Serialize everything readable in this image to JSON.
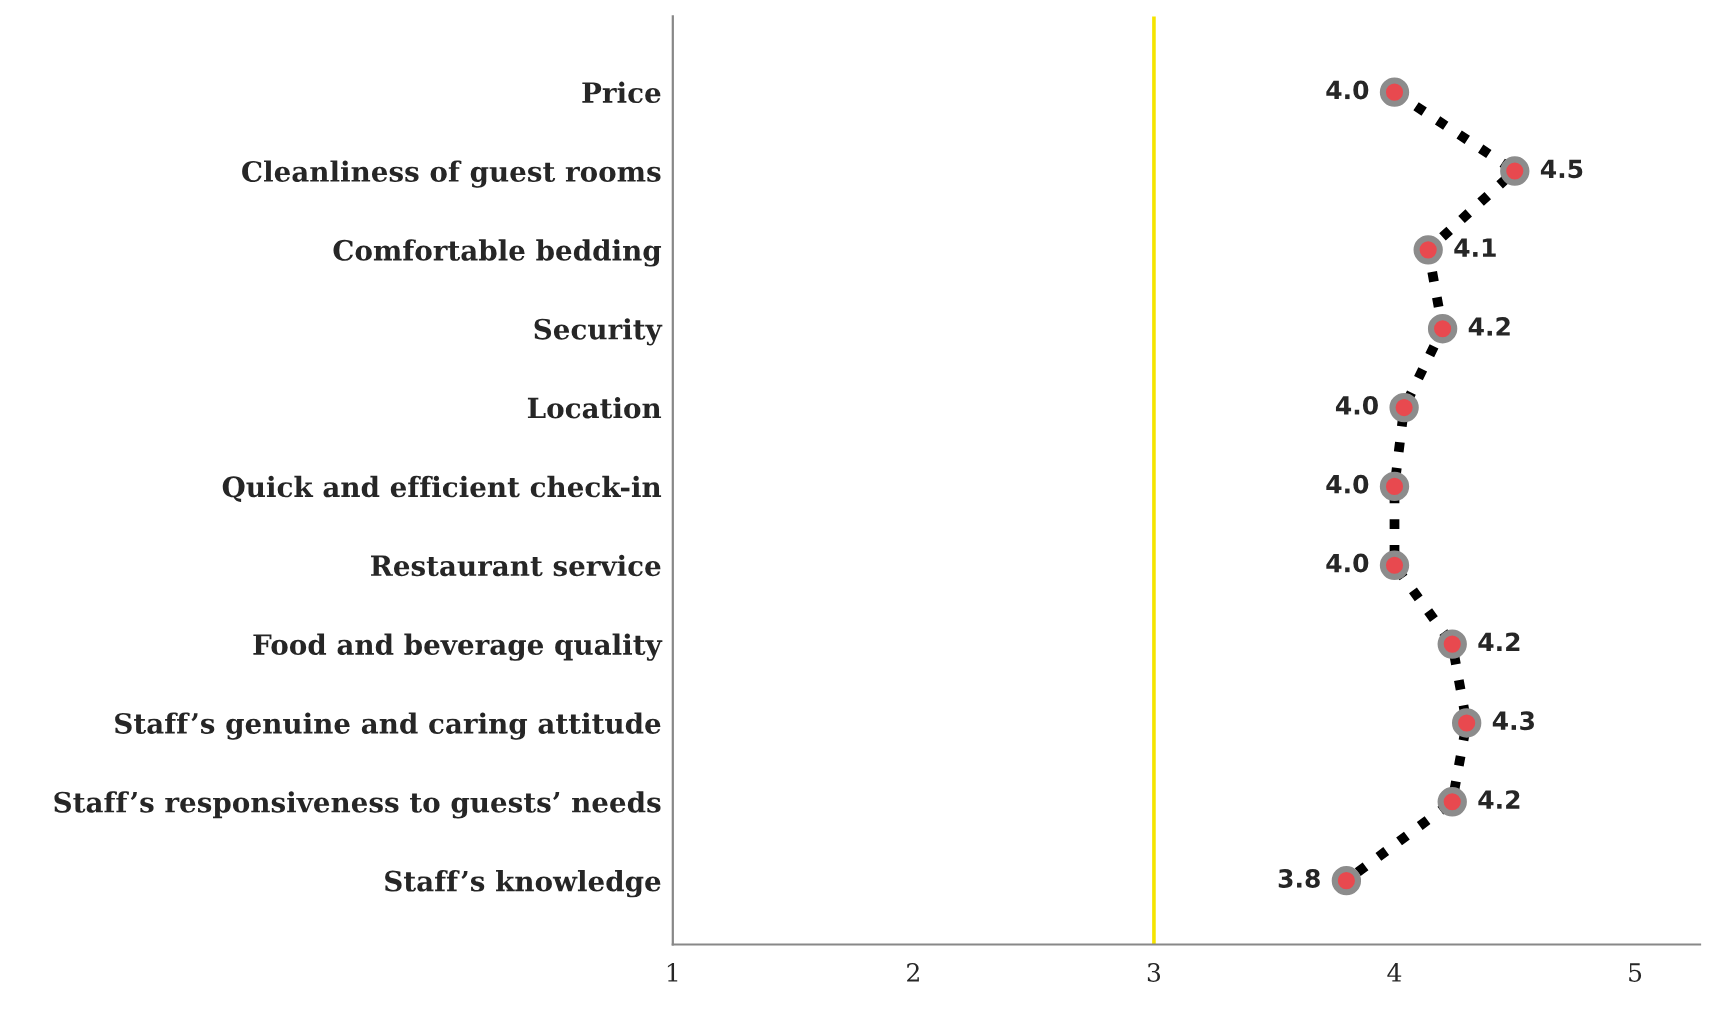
{
  "chart_data": {
    "type": "line",
    "orientation": "horizontal",
    "categories": [
      "Price",
      "Cleanliness of guest rooms",
      "Comfortable bedding",
      "Security",
      "Location",
      "Quick and efficient check-in",
      "Restaurant service",
      "Food and beverage quality",
      "Staff’s genuine and caring attitude",
      "Staff’s responsiveness to guests’ needs",
      "Staff’s knowledge"
    ],
    "series": [
      {
        "color": "#000000",
        "values": [
          4.0,
          4.5,
          4.14,
          4.2,
          4.04,
          4.0,
          4.0,
          4.24,
          4.3,
          4.24,
          3.8
        ],
        "colors": [
          "#e8494f",
          "#e8494f",
          "#e8494f",
          "#e8494f",
          "#e8494f",
          "#e8494f",
          "#e8494f",
          "#e8494f",
          "#e8494f",
          "#e8494f",
          "#e8494f"
        ],
        "value_labels": [
          "4.0",
          "4.5",
          "4.1",
          "4.2",
          "4.0",
          "4.0",
          "4.0",
          "4.2",
          "4.3",
          "4.2",
          "3.8"
        ]
      }
    ],
    "xlim": [
      1,
      5.27
    ],
    "xticks": [
      1,
      2,
      3,
      4,
      5
    ],
    "ref_lines": [
      {
        "axis": "x",
        "value": 3,
        "color": "#f5e400"
      }
    ],
    "marker": "circle",
    "line_style": "dotted",
    "grid": false,
    "legend": false
  }
}
